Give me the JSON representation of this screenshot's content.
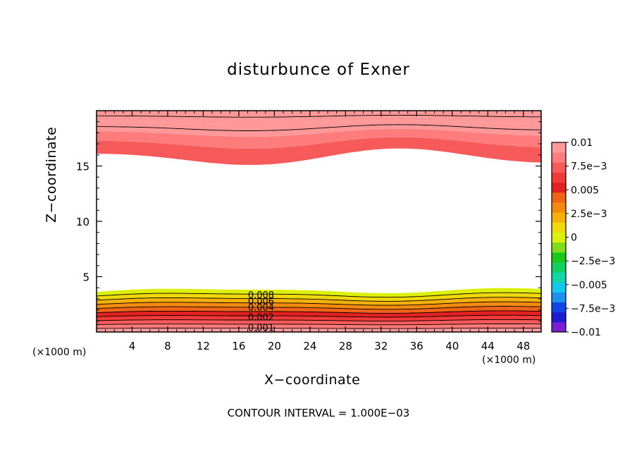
{
  "chart_data": {
    "type": "contour",
    "title": "disturbunce of Exner",
    "xlabel": "X−coordinate",
    "ylabel": "Z−coordinate",
    "x_unit": "(×1000 m)",
    "xlim": [
      0,
      50
    ],
    "ylim": [
      0,
      20
    ],
    "x_ticks": [
      4,
      8,
      12,
      16,
      20,
      24,
      28,
      32,
      36,
      40,
      44,
      48
    ],
    "x_tick_labels": [
      "4",
      "8",
      "12",
      "16",
      "20",
      "24",
      "28",
      "32",
      "36",
      "40",
      "44",
      "48"
    ],
    "y_ticks": [
      5,
      10,
      15
    ],
    "y_tick_labels": [
      "5",
      "10",
      "15"
    ],
    "contour_interval_text": "CONTOUR INTERVAL = 1.000E−03",
    "contour_labels": [
      "0.008",
      "0.006",
      "0.004",
      "0.002",
      "0.001"
    ],
    "colorbar": {
      "min": -0.01,
      "max": 0.01,
      "tick_labels": [
        "0.01",
        "7.5e−3",
        "0.005",
        "2.5e−3",
        "0",
        "−2.5e−3",
        "−0.005",
        "−7.5e−3",
        "−0.01"
      ],
      "colors": [
        "#7a1fd0",
        "#1c1cd2",
        "#1046e8",
        "#1e90f0",
        "#12c8ec",
        "#10d7a4",
        "#10d060",
        "#19c919",
        "#7fdd1c",
        "#dcf00c",
        "#f0d80a",
        "#f5b00a",
        "#f58a10",
        "#f06418",
        "#e52020",
        "#f03a3a",
        "#f75a5a",
        "#ff7c7c",
        "#ff9898"
      ]
    },
    "series": [
      {
        "description_level": "bottom_layer",
        "z_top_km": 3.8,
        "values_range": [
          0.0,
          0.01
        ]
      },
      {
        "description_level": "top_layer",
        "z_bottom_km": 15.5,
        "values_range": [
          0.007,
          0.01
        ]
      }
    ]
  }
}
